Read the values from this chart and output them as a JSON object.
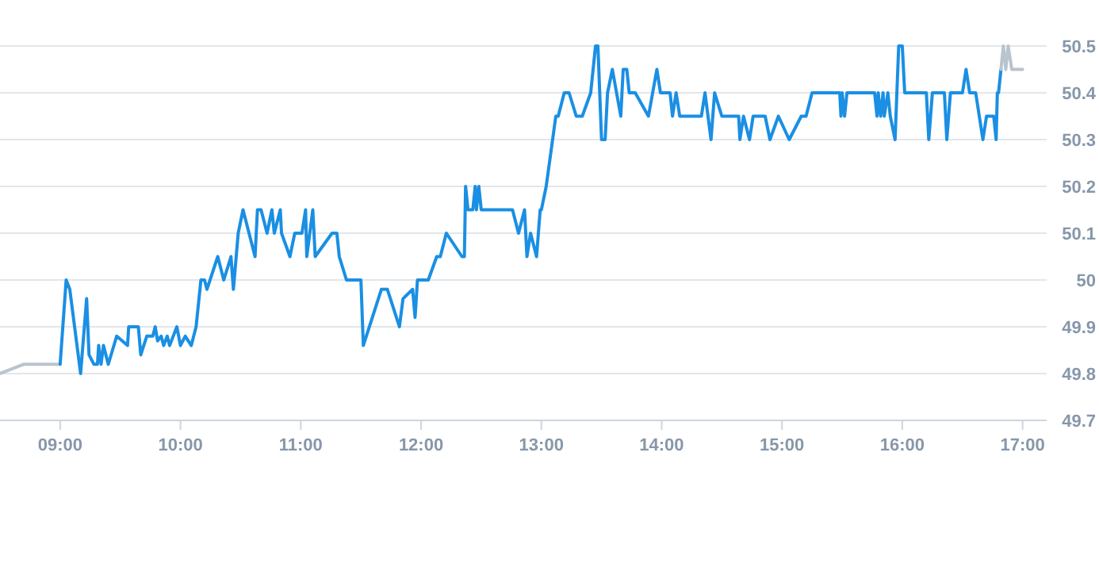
{
  "chart_data": {
    "type": "line",
    "xlim": [
      8.5,
      17.2
    ],
    "ylim": [
      49.7,
      50.5
    ],
    "xticks": [
      {
        "value": 9,
        "label": "09:00"
      },
      {
        "value": 10,
        "label": "10:00"
      },
      {
        "value": 11,
        "label": "11:00"
      },
      {
        "value": 12,
        "label": "12:00"
      },
      {
        "value": 13,
        "label": "13:00"
      },
      {
        "value": 14,
        "label": "14:00"
      },
      {
        "value": 15,
        "label": "15:00"
      },
      {
        "value": 16,
        "label": "16:00"
      },
      {
        "value": 17,
        "label": "17:00"
      }
    ],
    "yticks": [
      49.7,
      49.8,
      49.9,
      {
        "value": 50,
        "label": "50"
      },
      50.1,
      50.2,
      50.3,
      50.4,
      50.5
    ],
    "grid": "y",
    "marker": "none",
    "line_style": "solid",
    "series": [
      {
        "color": "#b8c4ce",
        "x": [
          8.5,
          8.7,
          9.0
        ],
        "values": [
          49.8,
          49.82,
          49.82
        ]
      },
      {
        "color": "#1a8fe3",
        "x": [
          9.0,
          9.05,
          9.08,
          9.17,
          9.22,
          9.24,
          9.28,
          9.31,
          9.32,
          9.34,
          9.36,
          9.4,
          9.47,
          9.56,
          9.57,
          9.65,
          9.67,
          9.72,
          9.77,
          9.79,
          9.81,
          9.84,
          9.86,
          9.89,
          9.91,
          9.97,
          10.0,
          10.04,
          10.09,
          10.13,
          10.17,
          10.2,
          10.22,
          10.31,
          10.36,
          10.42,
          10.44,
          10.48,
          10.52,
          10.57,
          10.62,
          10.64,
          10.67,
          10.72,
          10.76,
          10.78,
          10.83,
          10.84,
          10.91,
          10.95,
          11.01,
          11.04,
          11.05,
          11.1,
          11.12,
          11.26,
          11.3,
          11.32,
          11.38,
          11.5,
          11.52,
          11.67,
          11.72,
          11.82,
          11.85,
          11.93,
          11.95,
          11.97,
          12.06,
          12.13,
          12.16,
          12.21,
          12.34,
          12.36,
          12.37,
          12.39,
          12.43,
          12.45,
          12.46,
          12.48,
          12.5,
          12.76,
          12.81,
          12.86,
          12.88,
          12.91,
          12.96,
          12.99,
          13.0,
          13.04,
          13.12,
          13.14,
          13.19,
          13.23,
          13.29,
          13.34,
          13.41,
          13.45,
          13.47,
          13.5,
          13.53,
          13.55,
          13.59,
          13.66,
          13.68,
          13.71,
          13.73,
          13.78,
          13.89,
          13.96,
          13.99,
          14.07,
          14.09,
          14.12,
          14.15,
          14.33,
          14.36,
          14.41,
          14.44,
          14.5,
          14.64,
          14.65,
          14.68,
          14.73,
          14.76,
          14.86,
          14.9,
          14.97,
          15.06,
          15.16,
          15.2,
          15.25,
          15.48,
          15.49,
          15.5,
          15.52,
          15.54,
          15.77,
          15.79,
          15.8,
          15.82,
          15.84,
          15.85,
          15.88,
          15.9,
          15.94,
          15.97,
          16.0,
          16.02,
          16.2,
          16.22,
          16.25,
          16.35,
          16.37,
          16.4,
          16.5,
          16.53,
          16.56,
          16.61,
          16.67,
          16.7,
          16.76,
          16.78,
          16.79,
          16.8,
          16.82
        ],
        "values": [
          49.82,
          50.0,
          49.98,
          49.8,
          49.96,
          49.84,
          49.82,
          49.82,
          49.86,
          49.82,
          49.86,
          49.82,
          49.88,
          49.86,
          49.9,
          49.9,
          49.84,
          49.88,
          49.88,
          49.9,
          49.87,
          49.88,
          49.86,
          49.88,
          49.86,
          49.9,
          49.86,
          49.88,
          49.86,
          49.9,
          50.0,
          50.0,
          49.98,
          50.05,
          50.0,
          50.05,
          49.98,
          50.1,
          50.15,
          50.1,
          50.05,
          50.15,
          50.15,
          50.1,
          50.15,
          50.1,
          50.15,
          50.1,
          50.05,
          50.1,
          50.1,
          50.15,
          50.05,
          50.15,
          50.05,
          50.1,
          50.1,
          50.05,
          50.0,
          50.0,
          49.86,
          49.98,
          49.98,
          49.9,
          49.96,
          49.98,
          49.92,
          50.0,
          50.0,
          50.05,
          50.05,
          50.1,
          50.05,
          50.05,
          50.2,
          50.15,
          50.15,
          50.2,
          50.15,
          50.2,
          50.15,
          50.15,
          50.1,
          50.15,
          50.05,
          50.1,
          50.05,
          50.15,
          50.15,
          50.2,
          50.35,
          50.35,
          50.4,
          50.4,
          50.35,
          50.35,
          50.4,
          50.5,
          50.5,
          50.3,
          50.3,
          50.4,
          50.45,
          50.35,
          50.45,
          50.45,
          50.4,
          50.4,
          50.35,
          50.45,
          50.4,
          50.4,
          50.35,
          50.4,
          50.35,
          50.35,
          50.4,
          50.3,
          50.4,
          50.35,
          50.35,
          50.3,
          50.35,
          50.3,
          50.35,
          50.35,
          50.3,
          50.35,
          50.3,
          50.35,
          50.35,
          50.4,
          50.4,
          50.35,
          50.4,
          50.35,
          50.4,
          50.4,
          50.35,
          50.4,
          50.35,
          50.4,
          50.35,
          50.4,
          50.35,
          50.3,
          50.5,
          50.5,
          50.4,
          50.4,
          50.3,
          50.4,
          50.4,
          50.3,
          50.4,
          50.4,
          50.45,
          50.4,
          50.4,
          50.3,
          50.35,
          50.35,
          50.3,
          50.4,
          50.4,
          50.45
        ]
      },
      {
        "color": "#b8c4ce",
        "x": [
          16.82,
          16.84,
          16.86,
          16.88,
          16.91,
          17.0
        ],
        "values": [
          50.45,
          50.5,
          50.45,
          50.5,
          50.45,
          50.45
        ]
      }
    ]
  }
}
